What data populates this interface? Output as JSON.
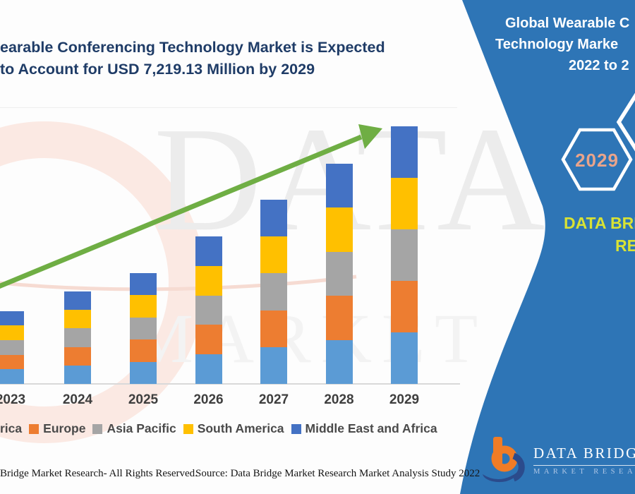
{
  "colors": {
    "band_blue": "#2e75b6",
    "arrow_green": "#6fae44",
    "title_navy": "#1f3c67",
    "hexagon_label_salmon": "#e9a48b",
    "brand_yellow_green": "#d9e234",
    "axis_gray": "#d9d9d9",
    "north_america": "#5b9bd5",
    "europe": "#ed7d31",
    "asia_pacific": "#a5a5a5",
    "south_america": "#ffc000",
    "middle_east_africa": "#4472c4"
  },
  "title": {
    "line1": "earable Conferencing Technology Market is Expected",
    "line2": "to Account for USD 7,219.13 Million by 2029"
  },
  "band": {
    "heading_lines": [
      "Global Wearable C",
      "Technology Marke",
      "2022 to 2"
    ],
    "hexagon_label": "2029",
    "brand_line1": "DATA BRI",
    "brand_line2": "RES",
    "logo": {
      "name": "DATA BRIDGE",
      "tagline": "MARKET RESEARCH"
    }
  },
  "chart_data": {
    "type": "bar",
    "stacked": true,
    "title": "",
    "xlabel": "",
    "ylabel": "",
    "unit": "USD Million",
    "legend_position": "bottom",
    "grid": false,
    "categories": [
      "2023",
      "2024",
      "2025",
      "2026",
      "2027",
      "2028",
      "2029"
    ],
    "series": [
      {
        "name": "North America",
        "color": "#5b9bd5",
        "values": [
          408,
          518,
          621,
          827,
          1032,
          1234,
          1443.83
        ]
      },
      {
        "name": "Europe",
        "color": "#ed7d31",
        "values": [
          408,
          518,
          621,
          827,
          1032,
          1234,
          1443.83
        ]
      },
      {
        "name": "Asia Pacific",
        "color": "#a5a5a5",
        "values": [
          408,
          518,
          621,
          827,
          1032,
          1234,
          1443.83
        ]
      },
      {
        "name": "South America",
        "color": "#ffc000",
        "values": [
          408,
          518,
          621,
          827,
          1032,
          1234,
          1443.83
        ]
      },
      {
        "name": "Middle East and Africa",
        "color": "#4472c4",
        "values": [
          408,
          518,
          621,
          827,
          1032,
          1234,
          1443.83
        ]
      }
    ],
    "estimated_totals": [
      2040,
      2590,
      3105,
      4135,
      5160,
      6170,
      7219.13
    ],
    "annotation": "USD 7,219.13 Million by 2029",
    "trend_arrow": "up"
  },
  "legend": {
    "items": [
      {
        "label": "rica",
        "color": ""
      },
      {
        "label": "Europe",
        "color": "#ed7d31"
      },
      {
        "label": "Asia Pacific",
        "color": "#a5a5a5"
      },
      {
        "label": "South America",
        "color": "#ffc000"
      },
      {
        "label": "Middle East and Africa",
        "color": "#4472c4"
      }
    ]
  },
  "watermark": {
    "big": "DATA B",
    "small": "MARKET RESEAR"
  },
  "footer": {
    "left": "Bridge Market Research- All Rights Reserved.",
    "right": "Source: Data Bridge Market Research Market Analysis Study 2022"
  }
}
